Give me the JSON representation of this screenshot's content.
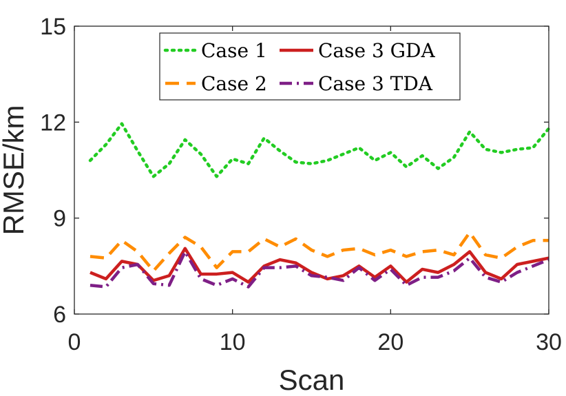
{
  "chart_data": {
    "type": "line",
    "title": "",
    "xlabel": "Scan",
    "ylabel": "RMSE/km",
    "xlim": [
      0,
      30
    ],
    "ylim": [
      6,
      15
    ],
    "xticks": [
      0,
      10,
      20,
      30
    ],
    "yticks": [
      6,
      9,
      12,
      15
    ],
    "xtick_labels": [
      "0",
      "10",
      "20",
      "30"
    ],
    "ytick_labels": [
      "6",
      "9",
      "12",
      "15"
    ],
    "grid": false,
    "legend_position": "top-center",
    "x": [
      1,
      2,
      3,
      4,
      5,
      6,
      7,
      8,
      9,
      10,
      11,
      12,
      13,
      14,
      15,
      16,
      17,
      18,
      19,
      20,
      21,
      22,
      23,
      24,
      25,
      26,
      27,
      28,
      29,
      30
    ],
    "series": [
      {
        "name": "Case 1",
        "color": "#22cc22",
        "style": "dotted",
        "values": [
          10.8,
          11.3,
          11.95,
          11.1,
          10.3,
          10.7,
          11.45,
          11.0,
          10.3,
          10.85,
          10.7,
          11.5,
          11.1,
          10.75,
          10.7,
          10.8,
          11.0,
          11.2,
          10.8,
          11.05,
          10.6,
          10.95,
          10.55,
          10.9,
          11.7,
          11.15,
          11.05,
          11.15,
          11.2,
          11.8
        ]
      },
      {
        "name": "Case 2",
        "color": "#ff8c00",
        "style": "dashed",
        "values": [
          7.8,
          7.75,
          8.3,
          7.95,
          7.35,
          7.9,
          8.4,
          8.1,
          7.45,
          7.95,
          7.95,
          8.35,
          8.1,
          8.35,
          8.0,
          7.8,
          8.0,
          8.05,
          7.85,
          8.0,
          7.8,
          7.95,
          8.0,
          7.85,
          8.55,
          7.85,
          7.75,
          8.1,
          8.3,
          8.3
        ]
      },
      {
        "name": "Case 3 GDA",
        "color": "#cc1f1f",
        "style": "solid",
        "values": [
          7.3,
          7.1,
          7.65,
          7.55,
          7.05,
          7.2,
          8.05,
          7.25,
          7.25,
          7.3,
          7.0,
          7.5,
          7.7,
          7.6,
          7.3,
          7.1,
          7.2,
          7.5,
          7.15,
          7.5,
          7.0,
          7.4,
          7.3,
          7.55,
          7.95,
          7.3,
          7.1,
          7.55,
          7.65,
          7.75
        ]
      },
      {
        "name": "Case 3 TDA",
        "color": "#7e1f86",
        "style": "dashdot",
        "values": [
          6.9,
          6.85,
          7.45,
          7.55,
          6.95,
          6.9,
          7.95,
          7.1,
          6.9,
          7.1,
          6.85,
          7.45,
          7.45,
          7.5,
          7.2,
          7.15,
          7.05,
          7.45,
          7.05,
          7.4,
          6.9,
          7.15,
          7.15,
          7.35,
          7.75,
          7.15,
          7.0,
          7.3,
          7.5,
          7.7
        ]
      }
    ]
  }
}
